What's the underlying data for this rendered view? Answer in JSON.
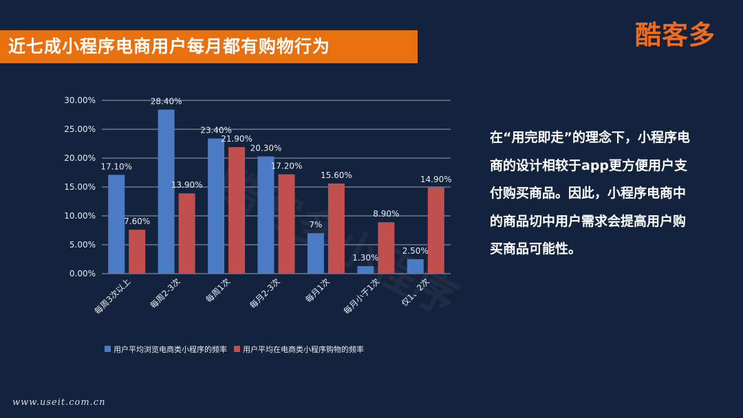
{
  "header": {
    "title": "近七成小程序电商用户每月都有购物行为",
    "logo": "酷客多"
  },
  "watermark": "酷客多小程序",
  "side_text": "在“用完即走”的理念下，小程序电商的设计相较于app更方便用户支付购买商品。因此，小程序电商中的商品切中用户需求会提高用户购买商品可能性。",
  "footer": {
    "url": "www.useit.com.cn"
  },
  "colors": {
    "series1": "#4b7bc4",
    "series2": "#c04f4e",
    "title_bar": "#e8700f",
    "background": "#14233d"
  },
  "chart_data": {
    "type": "bar",
    "categories": [
      "每周3次以上",
      "每周2-3次",
      "每周1次",
      "每月2-3次",
      "每月1次",
      "每月小于1次",
      "仅1、2次"
    ],
    "series": [
      {
        "name": "用户平均浏览电商类小程序的频率",
        "values": [
          17.1,
          28.4,
          23.4,
          20.3,
          7,
          1.3,
          2.5
        ],
        "labels": [
          "17.10%",
          "28.40%",
          "23.40%",
          "20.30%",
          "7%",
          "1.30%",
          "2.50%"
        ]
      },
      {
        "name": "用户平均在电商类小程序购物的频率",
        "values": [
          7.6,
          13.9,
          21.9,
          17.2,
          15.6,
          8.9,
          14.9
        ],
        "labels": [
          "7.60%",
          "13.90%",
          "21.90%",
          "17.20%",
          "15.60%",
          "8.90%",
          "14.90%"
        ]
      }
    ],
    "ylim": [
      0,
      30
    ],
    "yticks": [
      "0.00%",
      "5.00%",
      "10.00%",
      "15.00%",
      "20.00%",
      "25.00%",
      "30.00%"
    ],
    "grid": true,
    "legend": "bottom"
  }
}
